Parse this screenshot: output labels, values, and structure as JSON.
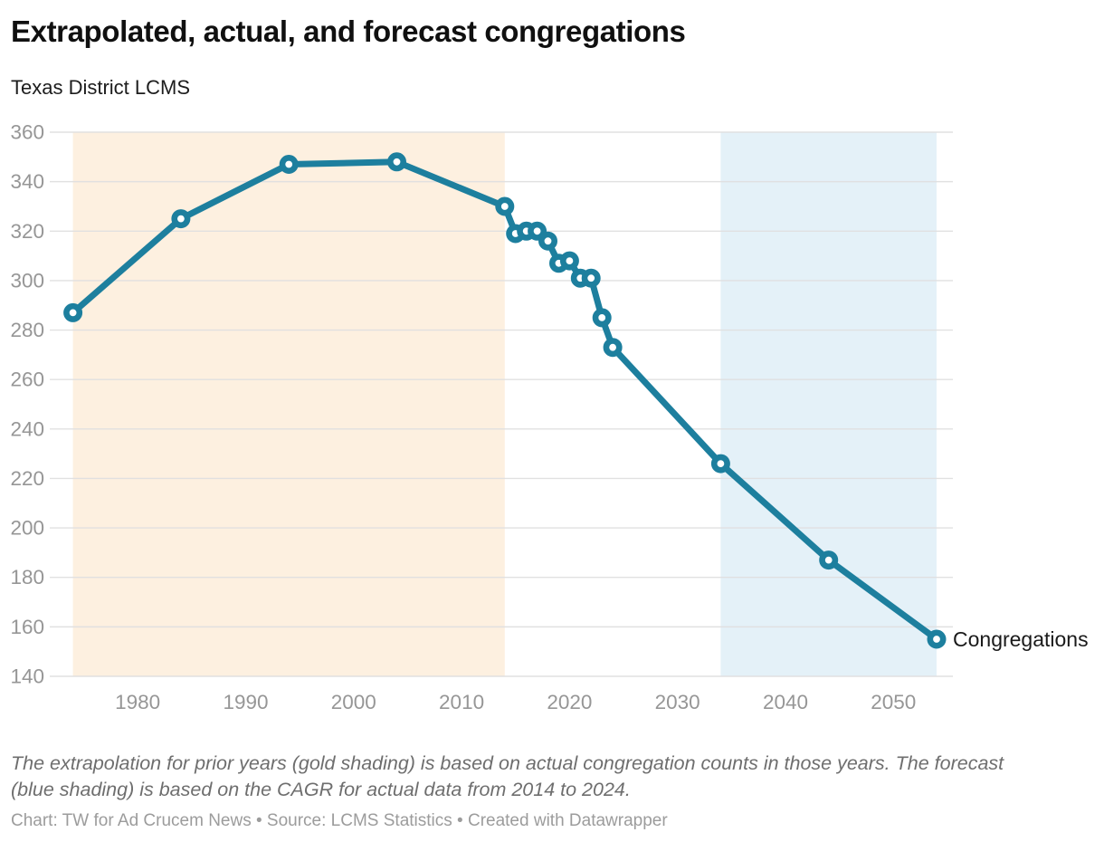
{
  "header": {
    "title": "Extrapolated, actual, and forecast congregations",
    "subtitle": "Texas District LCMS"
  },
  "chart_data": {
    "type": "line",
    "title": "Extrapolated, actual, and forecast congregations",
    "subtitle": "Texas District LCMS",
    "x": [
      1974,
      1984,
      1994,
      2004,
      2014,
      2015,
      2016,
      2017,
      2018,
      2019,
      2020,
      2021,
      2022,
      2023,
      2024,
      2034,
      2044,
      2054
    ],
    "series": [
      {
        "name": "Congregations",
        "values": [
          287,
          325,
          347,
          348,
          330,
          319,
          320,
          320,
          316,
          307,
          308,
          301,
          301,
          285,
          273,
          226,
          187,
          155
        ]
      }
    ],
    "end_label": "Congregations",
    "ylim": [
      140,
      360
    ],
    "ytick_step": 20,
    "xticks": [
      1980,
      1990,
      2000,
      2010,
      2020,
      2030,
      2040,
      2050
    ],
    "grid": true,
    "legend_position": "end-of-line",
    "bands": [
      {
        "name": "extrapolated (gold shading)",
        "from": 1974,
        "to": 2014,
        "color": "#fdf0e0"
      },
      {
        "name": "forecast (blue shading)",
        "from": 2034,
        "to": 2054,
        "color": "#e4f1f8"
      }
    ],
    "colors": {
      "line": "#1d7f9e",
      "marker_fill": "#ffffff",
      "axis_text": "#969696",
      "gridline": "#e0e0e0",
      "end_label_text": "#1a1a1a"
    }
  },
  "footer": {
    "note": "The extrapolation for prior years (gold shading) is based on actual congregation counts in those years. The forecast (blue shading) is based on the CAGR for actual data from 2014 to 2024.",
    "credit": "Chart: TW for Ad Crucem News • Source: LCMS Statistics • Created with Datawrapper"
  }
}
